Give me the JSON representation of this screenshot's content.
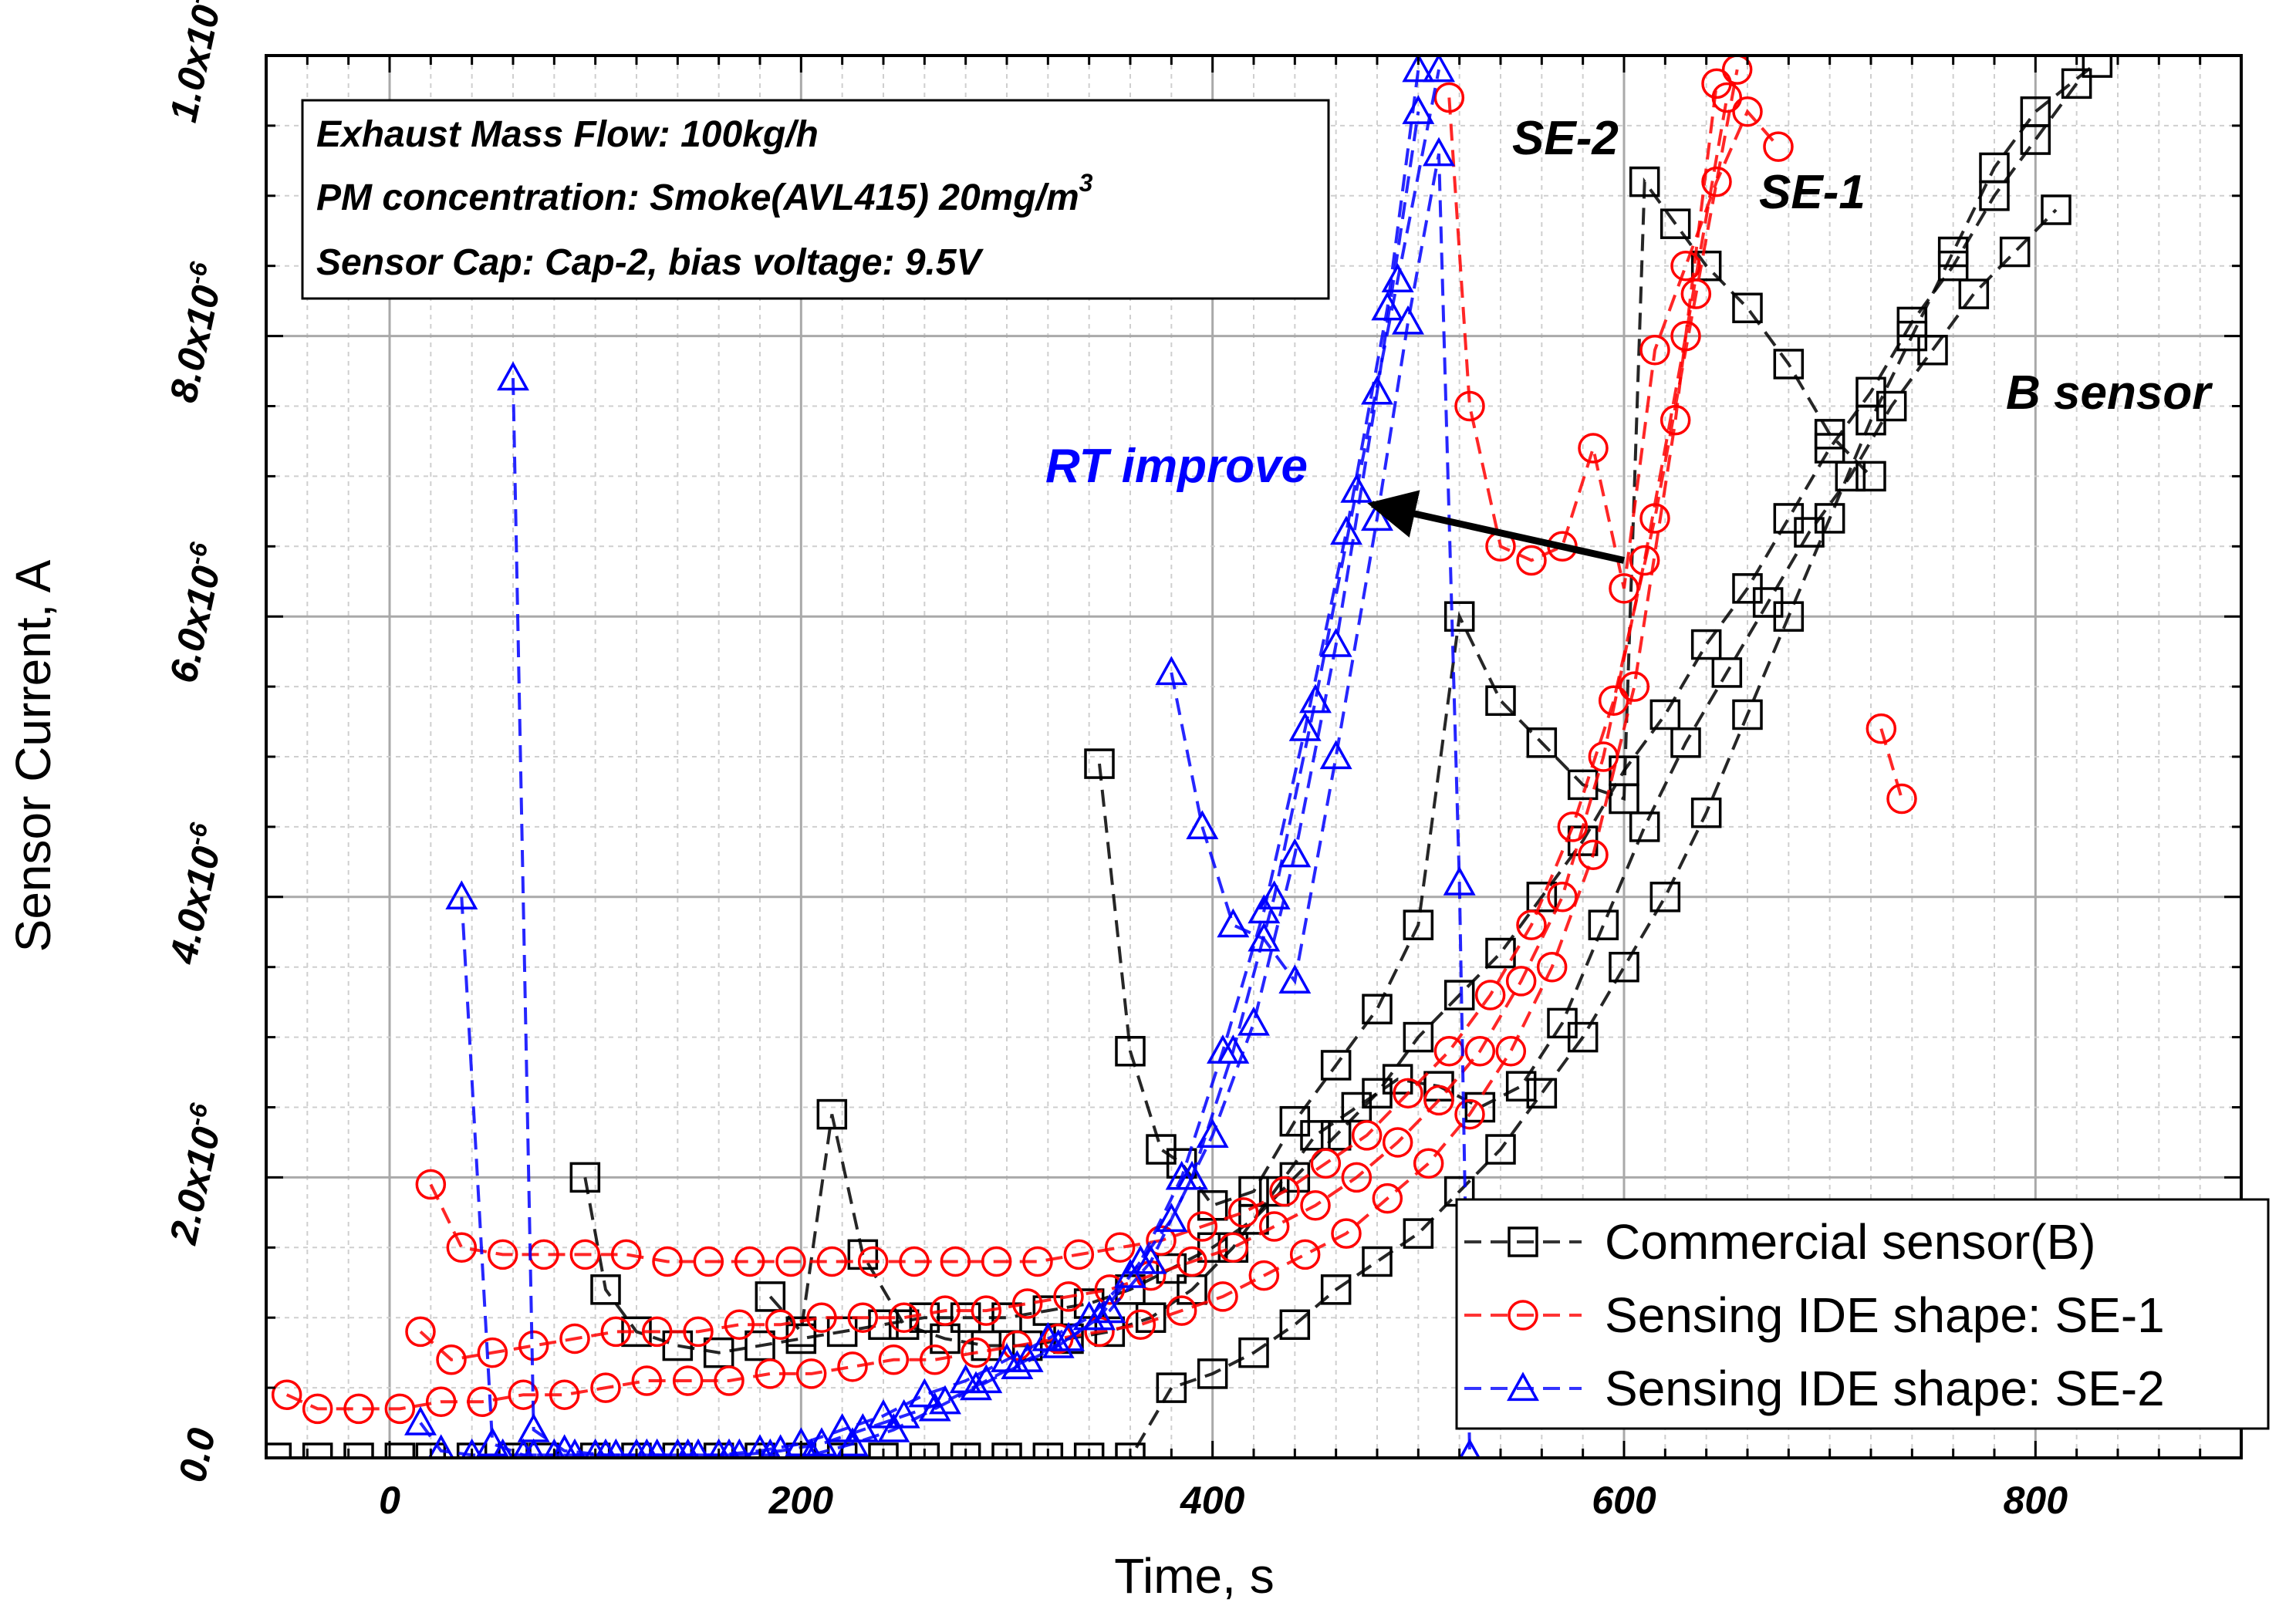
{
  "chart_data": {
    "type": "line",
    "title": "",
    "xlabel": "Time, s",
    "ylabel": "Sensor Current, A",
    "xlim": [
      -60,
      900
    ],
    "ylim": [
      0,
      1e-05
    ],
    "x_ticks": [
      0,
      200,
      400,
      600,
      800
    ],
    "x_tick_labels": [
      "0",
      "200",
      "400",
      "600",
      "800"
    ],
    "y_ticks": [
      0,
      2e-06,
      4e-06,
      6e-06,
      8e-06,
      1e-05
    ],
    "y_tick_labels": [
      {
        "mant": "0.0",
        "exp": ""
      },
      {
        "mant": "2.0x10",
        "exp": "-6"
      },
      {
        "mant": "4.0x10",
        "exp": "-6"
      },
      {
        "mant": "6.0x10",
        "exp": "-6"
      },
      {
        "mant": "8.0x10",
        "exp": "-6"
      },
      {
        "mant": "1.0x10",
        "exp": "-5"
      }
    ],
    "grid": true,
    "info_box": {
      "line1": "Exhaust Mass Flow: 100kg/h",
      "line2": "PM concentration:  Smoke(AVL415) 20mg/m",
      "line2_sup": "3",
      "line3": "Sensor Cap: Cap-2, bias voltage: 9.5V"
    },
    "annotations": {
      "rt_improve": "RT improve",
      "se2": "SE-2",
      "se1": "SE-1",
      "b_sensor": "B sensor",
      "arrow_from": {
        "x": 600,
        "y": 6.4e-06
      },
      "arrow_to": {
        "x": 470,
        "y": 6.8e-06
      }
    },
    "legend_position": "bottom-right",
    "series": [
      {
        "name": "Commercial sensor(B)",
        "color": "#000000",
        "marker": "square",
        "runs": [
          {
            "x": [
              -55,
              -35,
              -15,
              5,
              20,
              40,
              60,
              75,
              100,
              120,
              140,
              160,
              180,
              200,
              220,
              240,
              260,
              280,
              300,
              320,
              340,
              360,
              380,
              400,
              420,
              440,
              460,
              480,
              500,
              520,
              540,
              560,
              580,
              600,
              620,
              640,
              660,
              680,
              700,
              720,
              740,
              760,
              780,
              800,
              830
            ],
            "y": [
              0,
              0,
              0,
              0,
              0,
              0,
              0,
              0,
              0,
              0,
              0,
              0,
              0,
              0,
              0,
              0,
              0,
              0,
              0,
              0,
              0,
              0,
              5e-07,
              6e-07,
              7.5e-07,
              9.5e-07,
              1.2e-06,
              1.4e-06,
              1.6e-06,
              1.9e-06,
              2.2e-06,
              2.6e-06,
              3e-06,
              3.5e-06,
              4e-06,
              4.6e-06,
              5.3e-06,
              6e-06,
              6.7e-06,
              7.4e-06,
              8e-06,
              8.6e-06,
              9.2e-06,
              9.6e-06,
              9.95e-06
            ]
          },
          {
            "x": [
              95,
              105,
              120,
              140,
              160,
              180,
              200,
              220,
              240,
              260,
              280,
              300,
              320,
              340,
              360,
              380,
              400,
              420,
              440,
              460,
              480,
              500,
              520,
              540,
              560,
              580,
              600,
              620,
              640,
              660,
              680,
              700,
              720,
              740,
              760,
              780,
              800,
              820
            ],
            "y": [
              2e-06,
              1.2e-06,
              9e-07,
              8e-07,
              7.5e-07,
              8e-07,
              8.5e-07,
              9e-07,
              9.5e-07,
              1e-06,
              1e-06,
              1e-06,
              1.05e-06,
              1.1e-06,
              1.2e-06,
              1.35e-06,
              1.5e-06,
              1.7e-06,
              2e-06,
              2.3e-06,
              2.6e-06,
              3e-06,
              3.3e-06,
              3.6e-06,
              4e-06,
              4.4e-06,
              4.9e-06,
              5.3e-06,
              5.8e-06,
              6.2e-06,
              6.7e-06,
              7.2e-06,
              7.6e-06,
              8.1e-06,
              8.5e-06,
              9e-06,
              9.4e-06,
              9.8e-06
            ]
          },
          {
            "x": [
              185,
              200,
              215,
              230,
              250,
              270,
              290,
              310,
              330,
              350,
              370,
              390,
              410,
              430,
              450,
              470,
              490,
              510,
              530,
              550,
              570,
              590,
              610,
              630,
              650,
              670,
              690,
              710,
              730,
              750,
              770,
              790,
              810
            ],
            "y": [
              1.15e-06,
              9e-07,
              2.45e-06,
              1.45e-06,
              9.5e-07,
              8.5e-07,
              8e-07,
              8e-07,
              8.5e-07,
              9e-07,
              1e-06,
              1.2e-06,
              1.5e-06,
              1.9e-06,
              2.3e-06,
              2.5e-06,
              2.7e-06,
              2.65e-06,
              2.5e-06,
              2.65e-06,
              3.1e-06,
              3.8e-06,
              4.5e-06,
              5.1e-06,
              5.6e-06,
              6.1e-06,
              6.6e-06,
              7e-06,
              7.5e-06,
              7.9e-06,
              8.3e-06,
              8.6e-06,
              8.9e-06
            ]
          },
          {
            "x": [
              345,
              360,
              375,
              385,
              400,
              420,
              440,
              460,
              480,
              500,
              520,
              540,
              560,
              580,
              600,
              610,
              625,
              640,
              660,
              680,
              700,
              720
            ],
            "y": [
              4.95e-06,
              2.9e-06,
              2.2e-06,
              2.1e-06,
              1.8e-06,
              1.9e-06,
              2.4e-06,
              2.8e-06,
              3.2e-06,
              3.8e-06,
              6e-06,
              5.4e-06,
              5.1e-06,
              4.8e-06,
              4.7e-06,
              9.1e-06,
              8.8e-06,
              8.5e-06,
              8.2e-06,
              7.8e-06,
              7.3e-06,
              7e-06
            ]
          }
        ]
      },
      {
        "name": "Sensing IDE shape: SE-1",
        "color": "#ff0000",
        "marker": "circle",
        "runs": [
          {
            "x": [
              -50,
              -35,
              -15,
              5,
              25,
              45,
              65,
              85,
              105,
              125,
              145,
              165,
              185,
              205,
              225,
              245,
              265,
              285,
              305,
              325,
              345,
              365,
              385,
              405,
              425,
              445,
              465,
              485,
              505,
              525,
              545,
              565,
              585,
              605,
              625,
              645
            ],
            "y": [
              4.5e-07,
              3.5e-07,
              3.5e-07,
              3.5e-07,
              4e-07,
              4e-07,
              4.5e-07,
              4.5e-07,
              5e-07,
              5.5e-07,
              5.5e-07,
              5.5e-07,
              6e-07,
              6e-07,
              6.5e-07,
              7e-07,
              7e-07,
              7.5e-07,
              8e-07,
              8.5e-07,
              9e-07,
              9.5e-07,
              1.05e-06,
              1.15e-06,
              1.3e-06,
              1.45e-06,
              1.6e-06,
              1.85e-06,
              2.1e-06,
              2.45e-06,
              2.9e-06,
              3.5e-06,
              4.3e-06,
              5.5e-06,
              7.4e-06,
              9.8e-06
            ]
          },
          {
            "x": [
              15,
              30,
              50,
              70,
              90,
              110,
              130,
              150,
              170,
              190,
              210,
              230,
              250,
              270,
              290,
              310,
              330,
              350,
              370,
              390,
              410,
              430,
              450,
              470,
              490,
              510,
              530,
              550,
              570,
              590,
              610,
              630,
              650
            ],
            "y": [
              9e-07,
              7e-07,
              7.5e-07,
              8e-07,
              8.5e-07,
              9e-07,
              9e-07,
              9e-07,
              9.5e-07,
              9.5e-07,
              1e-06,
              1e-06,
              1e-06,
              1.05e-06,
              1.05e-06,
              1.1e-06,
              1.15e-06,
              1.2e-06,
              1.3e-06,
              1.4e-06,
              1.5e-06,
              1.65e-06,
              1.8e-06,
              2e-06,
              2.25e-06,
              2.55e-06,
              2.9e-06,
              3.4e-06,
              4e-06,
              5e-06,
              6.4e-06,
              8e-06,
              9.7e-06
            ]
          },
          {
            "x": [
              20,
              35,
              55,
              75,
              95,
              115,
              135,
              155,
              175,
              195,
              215,
              235,
              255,
              275,
              295,
              315,
              335,
              355,
              375,
              395,
              415,
              435,
              455,
              475,
              495,
              515,
              535,
              555,
              575,
              595,
              615,
              635,
              655
            ],
            "y": [
              1.95e-06,
              1.5e-06,
              1.45e-06,
              1.45e-06,
              1.45e-06,
              1.45e-06,
              1.4e-06,
              1.4e-06,
              1.4e-06,
              1.4e-06,
              1.4e-06,
              1.4e-06,
              1.4e-06,
              1.4e-06,
              1.4e-06,
              1.4e-06,
              1.45e-06,
              1.5e-06,
              1.55e-06,
              1.65e-06,
              1.75e-06,
              1.9e-06,
              2.1e-06,
              2.3e-06,
              2.6e-06,
              2.9e-06,
              3.3e-06,
              3.8e-06,
              4.5e-06,
              5.4e-06,
              6.7e-06,
              8.3e-06,
              9.9e-06
            ]
          },
          {
            "x": [
              515,
              525,
              540,
              555,
              570,
              585,
              600,
              615,
              630,
              645,
              660,
              675
            ],
            "y": [
              9.7e-06,
              7.5e-06,
              6.5e-06,
              6.4e-06,
              6.5e-06,
              7.2e-06,
              6.2e-06,
              7.9e-06,
              8.5e-06,
              9.1e-06,
              9.6e-06,
              9.35e-06
            ]
          },
          {
            "x": [
              725,
              735
            ],
            "y": [
              5.2e-06,
              4.7e-06
            ]
          }
        ]
      },
      {
        "name": "Sensing IDE shape: SE-2",
        "color": "#0000ff",
        "marker": "triangle",
        "runs": [
          {
            "x": [
              15,
              25,
              40,
              55,
              70,
              90,
              110,
              130,
              150,
              170,
              190,
              210,
              230,
              250,
              270,
              290,
              310,
              330,
              350,
              370,
              390,
              410,
              430,
              450,
              470,
              490,
              510
            ],
            "y": [
              2.5e-07,
              5e-08,
              2e-08,
              2e-08,
              2e-08,
              2e-08,
              2e-08,
              2e-08,
              2e-08,
              2e-08,
              5e-08,
              1e-07,
              2e-07,
              3e-07,
              4e-07,
              5.5e-07,
              7e-07,
              8.5e-07,
              1.05e-06,
              1.4e-06,
              2e-06,
              2.9e-06,
              4e-06,
              5.4e-06,
              6.9e-06,
              8.4e-06,
              9.9e-06
            ]
          },
          {
            "x": [
              35,
              50,
              65,
              80,
              100,
              120,
              140,
              160,
              180,
              200,
              220,
              240,
              260,
              280,
              300,
              320,
              340,
              360,
              380,
              400,
              420,
              440,
              460,
              480,
              500
            ],
            "y": [
              4e-06,
              1e-07,
              2e-08,
              2e-08,
              2e-08,
              2e-08,
              2e-08,
              2e-08,
              5e-08,
              1e-07,
              2e-07,
              3e-07,
              4.5e-07,
              5.5e-07,
              7e-07,
              8.5e-07,
              1e-06,
              1.3e-06,
              1.7e-06,
              2.3e-06,
              3.1e-06,
              4.3e-06,
              5.8e-06,
              7.6e-06,
              9.6e-06
            ]
          },
          {
            "x": [
              60,
              70,
              85,
              105,
              125,
              145,
              165,
              185,
              205,
              225,
              245,
              265,
              285,
              305,
              325,
              345,
              365,
              385,
              405,
              425,
              445,
              465,
              485,
              500
            ],
            "y": [
              7.7e-06,
              2e-07,
              5e-08,
              2e-08,
              2e-08,
              2e-08,
              2e-08,
              2e-08,
              2e-08,
              1e-07,
              2e-07,
              3.5e-07,
              5e-07,
              6.5e-07,
              8e-07,
              1e-06,
              1.4e-06,
              2e-06,
              2.9e-06,
              3.9e-06,
              5.2e-06,
              6.6e-06,
              8.2e-06,
              9.9e-06
            ]
          },
          {
            "x": [
              380,
              395,
              410,
              425,
              440,
              460,
              480,
              495,
              510,
              520,
              525
            ],
            "y": [
              5.6e-06,
              4.5e-06,
              3.8e-06,
              3.7e-06,
              3.4e-06,
              5e-06,
              6.7e-06,
              8.1e-06,
              9.3e-06,
              4.1e-06,
              2e-08
            ]
          }
        ]
      }
    ]
  }
}
